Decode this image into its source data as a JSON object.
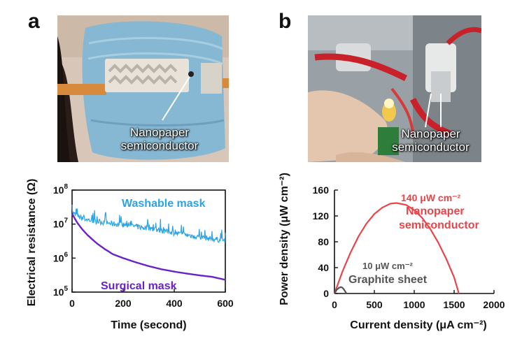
{
  "panels": {
    "a": {
      "letter": "a",
      "photo_label": [
        "Nanopaper",
        "semiconductor"
      ]
    },
    "b": {
      "letter": "b",
      "photo_label": [
        "Nanopaper",
        "semiconductor"
      ]
    }
  },
  "colors": {
    "washable": "#2aa4e6",
    "surgical": "#6a22c8",
    "nanopaper": "#e8454a",
    "graphite": "#555555",
    "axis": "#111111"
  },
  "chart_data": [
    {
      "type": "line",
      "xlabel": "Time (second)",
      "ylabel": "Electrical resistance (Ω)",
      "xlim": [
        0,
        600
      ],
      "ylim": [
        100000,
        100000000
      ],
      "yscale": "log",
      "xticks": [
        "0",
        "200",
        "400",
        "600"
      ],
      "yticks": [
        {
          "base": "10",
          "exp": "5",
          "value": 100000
        },
        {
          "base": "10",
          "exp": "6",
          "value": 1000000
        },
        {
          "base": "10",
          "exp": "7",
          "value": 10000000
        },
        {
          "base": "10",
          "exp": "8",
          "value": 100000000
        }
      ],
      "grid": false,
      "series": [
        {
          "name": "Washable mask",
          "x": [
            0,
            20,
            40,
            60,
            80,
            100,
            150,
            200,
            250,
            300,
            350,
            400,
            450,
            500,
            550,
            600
          ],
          "values": [
            22000000,
            17000000,
            15000000,
            13500000,
            12500000,
            12000000,
            10500000,
            9500000,
            8500000,
            7500000,
            6500000,
            5500000,
            4800000,
            4200000,
            3700000,
            3300000
          ]
        },
        {
          "name": "Surgical mask",
          "x": [
            0,
            20,
            40,
            60,
            80,
            100,
            130,
            160,
            200,
            250,
            300,
            350,
            400,
            450,
            500,
            550,
            600
          ],
          "values": [
            20000000,
            11000000,
            7000000,
            4800000,
            3500000,
            2600000,
            1800000,
            1300000,
            1000000,
            750000,
            580000,
            470000,
            400000,
            350000,
            310000,
            280000,
            230000
          ]
        }
      ]
    },
    {
      "type": "line",
      "xlabel": "Current density (μA cm⁻²)",
      "ylabel": "Power density (μW cm⁻²)",
      "xlim": [
        0,
        2000
      ],
      "ylim": [
        0,
        160
      ],
      "xticks": [
        "0",
        "500",
        "1000",
        "1500",
        "2000"
      ],
      "yticks": [
        "0",
        "40",
        "80",
        "120",
        "160"
      ],
      "grid": false,
      "series": [
        {
          "name": "Nanopaper semiconductor",
          "x": [
            0,
            100,
            200,
            300,
            400,
            500,
            600,
            700,
            780,
            900,
            1000,
            1100,
            1200,
            1300,
            1400,
            1500,
            1560
          ],
          "values": [
            0,
            34,
            63,
            88,
            108,
            123,
            133,
            139,
            140,
            137,
            129,
            117,
            100,
            79,
            54,
            25,
            0
          ]
        },
        {
          "name": "Graphite sheet",
          "x": [
            0,
            30,
            60,
            80,
            100,
            120,
            150
          ],
          "values": [
            0,
            6,
            9,
            10,
            9,
            6,
            0
          ]
        }
      ],
      "annotations": [
        {
          "text": "140 μW cm⁻²",
          "series": "Nanopaper semiconductor"
        },
        {
          "text": "10 μW cm⁻²",
          "series": "Graphite sheet"
        }
      ]
    }
  ]
}
